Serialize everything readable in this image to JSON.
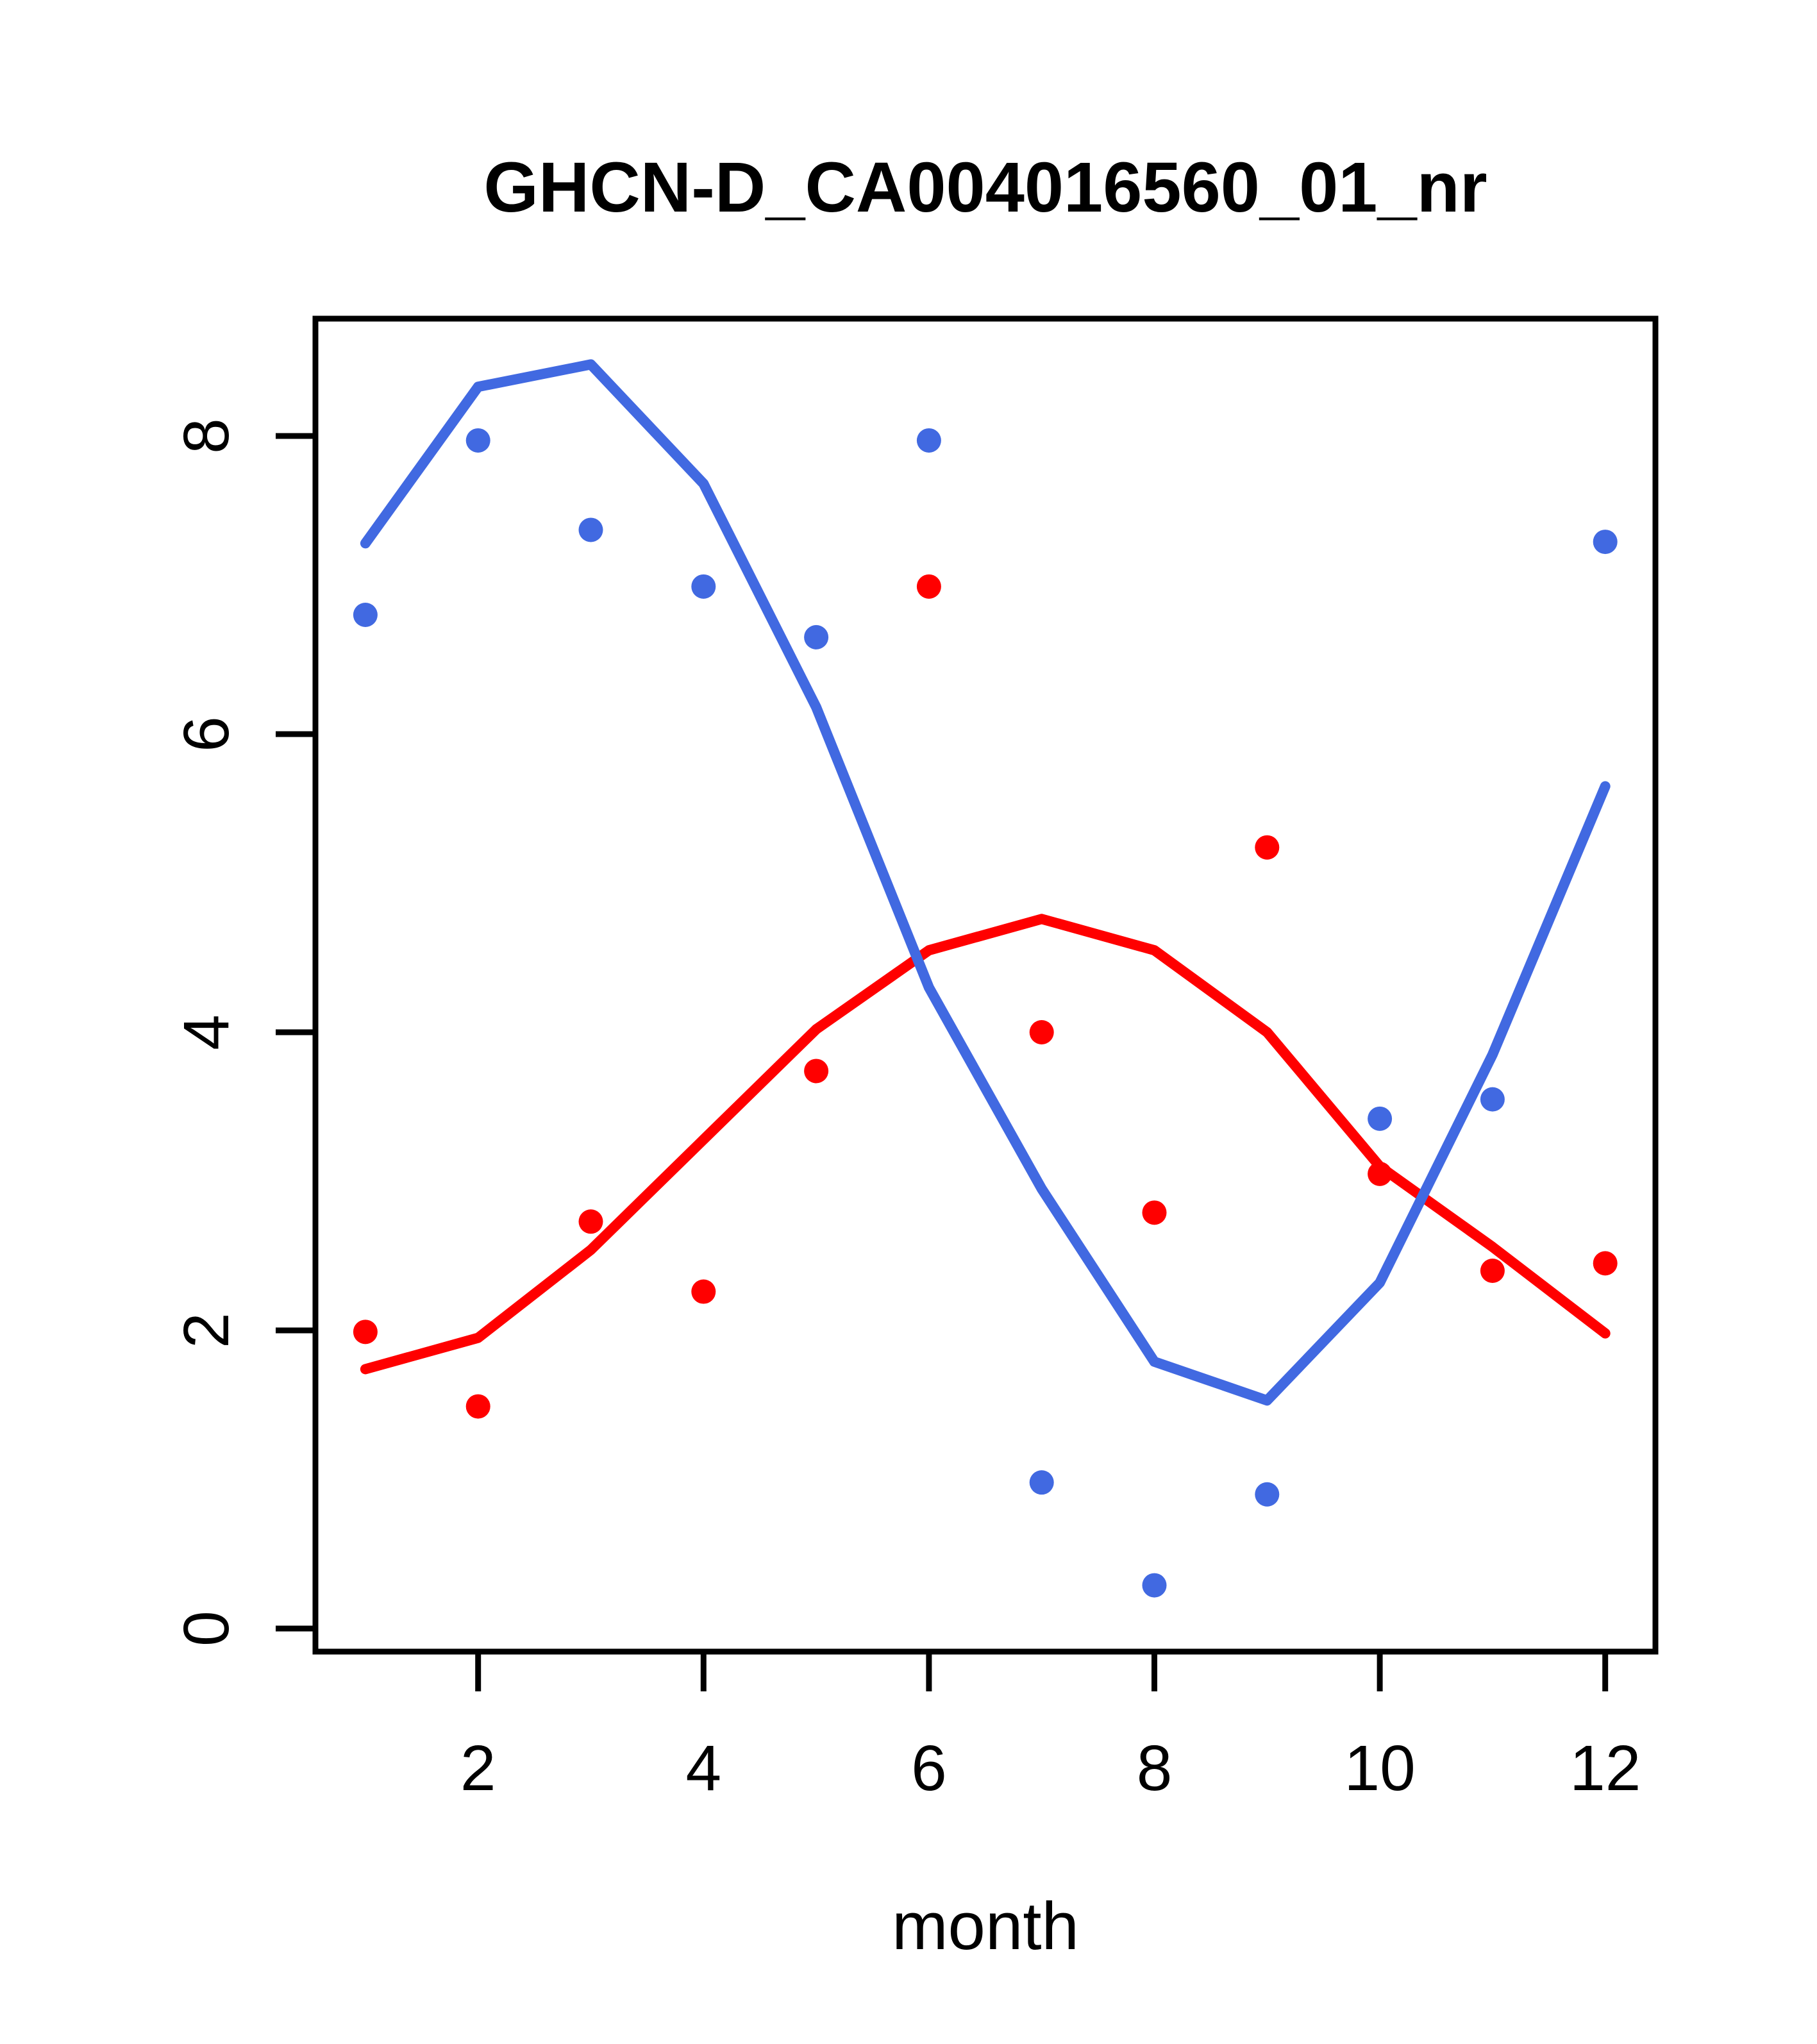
{
  "chart_data": {
    "type": "scatter",
    "title": "GHCN-D_CA004016560_01_nr",
    "xlabel": "month",
    "ylabel": "",
    "x_ticks": [
      2,
      4,
      6,
      8,
      10,
      12
    ],
    "y_ticks": [
      0,
      2,
      4,
      6,
      8
    ],
    "xlim": [
      0.56,
      12.44
    ],
    "ylim": [
      -0.15,
      8.79
    ],
    "grid": false,
    "legend_position": "none",
    "months": [
      1,
      2,
      3,
      4,
      5,
      6,
      7,
      8,
      9,
      10,
      11,
      12
    ],
    "colors": {
      "blue_series": "#4169E1",
      "red_series": "#FF0000",
      "axis": "#000000"
    },
    "series": [
      {
        "name": "blue-points",
        "kind": "points",
        "color": "#4169E1",
        "values": [
          6.8,
          7.97,
          7.37,
          6.99,
          6.65,
          7.97,
          0.98,
          0.29,
          0.9,
          3.42,
          3.55,
          7.29
        ]
      },
      {
        "name": "red-points",
        "kind": "points",
        "color": "#FF0000",
        "values": [
          1.99,
          1.49,
          2.73,
          2.26,
          3.74,
          6.99,
          4.0,
          2.79,
          5.24,
          3.05,
          2.4,
          2.45
        ]
      },
      {
        "name": "blue-smooth-line",
        "kind": "line",
        "color": "#4169E1",
        "values": [
          7.28,
          8.33,
          8.48,
          7.68,
          6.18,
          4.3,
          2.95,
          1.79,
          1.53,
          2.32,
          3.85,
          5.65
        ]
      },
      {
        "name": "red-smooth-line",
        "kind": "line",
        "color": "#FF0000",
        "values": [
          1.74,
          1.95,
          2.54,
          3.28,
          4.02,
          4.55,
          4.76,
          4.55,
          4.0,
          3.1,
          2.56,
          1.98
        ]
      }
    ]
  }
}
